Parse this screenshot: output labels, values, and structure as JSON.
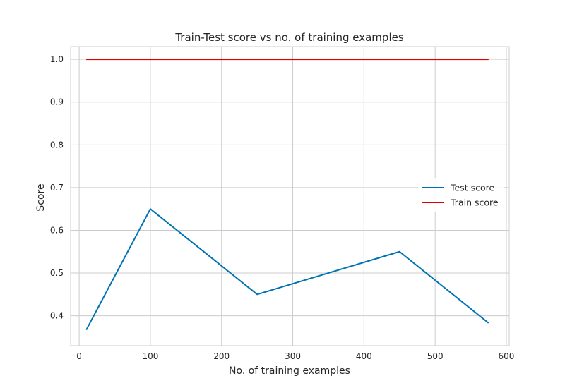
{
  "chart_data": {
    "type": "line",
    "title": "Train-Test score vs no. of training examples",
    "xlabel": "No. of training examples",
    "ylabel": "Score",
    "xlim": [
      -12,
      604
    ],
    "ylim": [
      0.33,
      1.03
    ],
    "xticks": [
      0,
      100,
      200,
      300,
      400,
      500,
      600
    ],
    "xtick_labels": [
      "0",
      "100",
      "200",
      "300",
      "400",
      "500",
      "600"
    ],
    "yticks": [
      0.4,
      0.5,
      0.6,
      0.7,
      0.8,
      0.9,
      1.0
    ],
    "ytick_labels": [
      "0.4",
      "0.5",
      "0.6",
      "0.7",
      "0.8",
      "0.9",
      "1.0"
    ],
    "grid": true,
    "legend_position": "center-right",
    "series": [
      {
        "name": "Test score",
        "color": "#0072b2",
        "x": [
          10,
          100,
          250,
          450,
          575
        ],
        "y": [
          0.367,
          0.65,
          0.45,
          0.55,
          0.383
        ]
      },
      {
        "name": "Train score",
        "color": "#e00000",
        "x": [
          10,
          575
        ],
        "y": [
          1.0,
          1.0
        ]
      }
    ]
  }
}
